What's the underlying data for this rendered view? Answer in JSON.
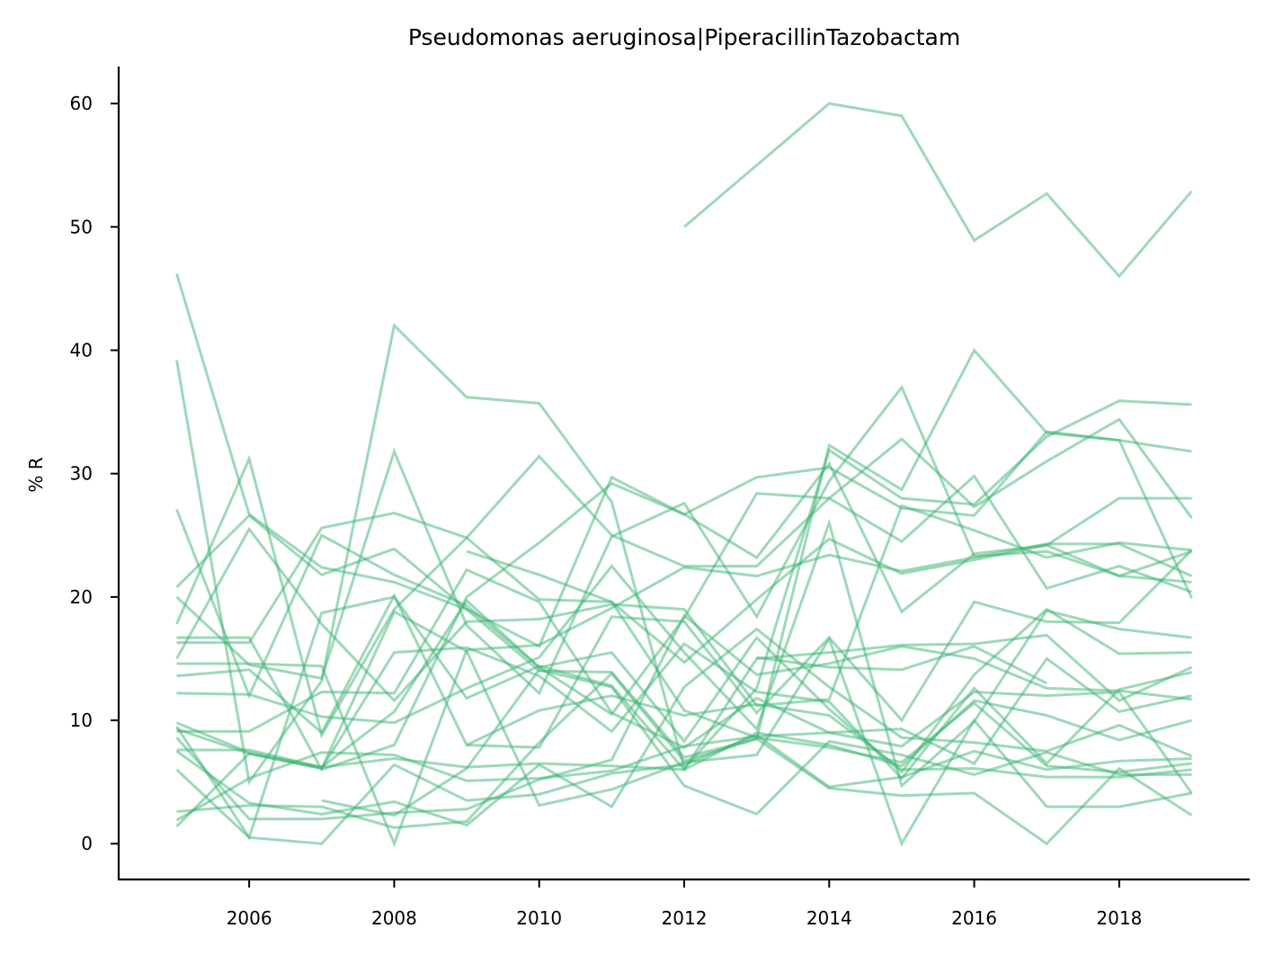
{
  "chart_data": {
    "type": "line",
    "title": "Pseudomonas aeruginosa|PiperacillinTazobactam",
    "xlabel": "",
    "ylabel": "% R",
    "xlim": [
      2004.2,
      2019.8
    ],
    "ylim": [
      -2.9,
      63.0
    ],
    "xticks": [
      2006,
      2008,
      2010,
      2012,
      2014,
      2016,
      2018
    ],
    "yticks": [
      0,
      10,
      20,
      30,
      40,
      50,
      60
    ],
    "grid": false,
    "legend": "none",
    "line_color": "#3cb371",
    "line_opacity": 0.5,
    "x": [
      2005,
      2006,
      2007,
      2008,
      2009,
      2010,
      2011,
      2012,
      2013,
      2014,
      2015,
      2016,
      2017,
      2018,
      2019
    ],
    "series": [
      {
        "values": [
          null,
          null,
          null,
          null,
          null,
          null,
          null,
          50.0,
          55.0,
          60.0,
          59.0,
          48.9,
          52.7,
          46.0,
          52.9
        ]
      },
      {
        "values": [
          46.2,
          26.7,
          22.4,
          21.2,
          19.0,
          14.0,
          13.9,
          7.0,
          8.5,
          32.3,
          28.7,
          40.0,
          33.3,
          32.7,
          31.8
        ]
      },
      {
        "values": [
          39.2,
          5.0,
          13.2,
          42.0,
          36.2,
          35.7,
          27.7,
          6.1,
          12.6,
          31.9,
          28.0,
          27.5,
          33.0,
          35.9,
          35.6
        ]
      },
      {
        "values": [
          27.1,
          12.0,
          25.0,
          21.8,
          19.3,
          14.3,
          10.5,
          18.3,
          28.4,
          28.0,
          32.8,
          27.3,
          31.0,
          34.4,
          26.4
        ]
      },
      {
        "values": [
          20.8,
          26.6,
          21.8,
          23.9,
          19.0,
          16.0,
          29.7,
          26.7,
          23.2,
          30.8,
          18.8,
          23.5,
          24.2,
          28.0,
          28.0
        ]
      },
      {
        "values": [
          20.0,
          14.5,
          13.4,
          31.8,
          17.7,
          12.2,
          24.9,
          27.6,
          18.4,
          29.4,
          37.0,
          23.3,
          23.7,
          21.7,
          21.2
        ]
      },
      {
        "values": [
          17.8,
          31.2,
          8.8,
          19.0,
          24.8,
          31.4,
          25.0,
          22.5,
          22.5,
          28.0,
          24.5,
          29.8,
          20.7,
          22.5,
          20.4
        ]
      },
      {
        "values": [
          16.7,
          16.7,
          6.0,
          8.0,
          20.0,
          24.4,
          29.2,
          26.7,
          29.7,
          30.5,
          27.2,
          26.6,
          33.4,
          32.7,
          19.9
        ]
      },
      {
        "values": [
          16.3,
          16.3,
          25.6,
          26.8,
          24.8,
          19.8,
          19.6,
          14.7,
          19.8,
          24.7,
          21.9,
          23.0,
          24.2,
          21.7,
          23.7
        ]
      },
      {
        "values": [
          15.0,
          25.5,
          17.8,
          11.6,
          18.0,
          18.2,
          19.4,
          19.0,
          11.2,
          11.7,
          27.4,
          25.4,
          23.2,
          24.4,
          23.8
        ]
      },
      {
        "values": [
          14.6,
          14.6,
          14.4,
          0.0,
          15.7,
          16.1,
          19.1,
          22.4,
          21.7,
          23.4,
          22.1,
          23.2,
          24.3,
          24.3,
          21.7
        ]
      },
      {
        "values": [
          13.6,
          14.1,
          9.0,
          20.1,
          8.0,
          7.8,
          18.4,
          18.0,
          10.6,
          16.7,
          10.0,
          19.6,
          18.0,
          17.9,
          23.8
        ]
      },
      {
        "values": [
          12.2,
          12.1,
          10.3,
          9.8,
          12.6,
          15.1,
          22.5,
          15.5,
          9.3,
          26.0,
          4.7,
          9.9,
          18.9,
          17.4,
          16.7
        ]
      },
      {
        "values": [
          9.8,
          7.4,
          6.2,
          10.7,
          19.7,
          14.3,
          15.5,
          8.3,
          16.7,
          10.9,
          5.8,
          13.7,
          19.0,
          15.4,
          15.5
        ]
      },
      {
        "values": [
          9.5,
          0.5,
          18.7,
          20.0,
          11.8,
          14.4,
          12.8,
          6.0,
          15.0,
          15.5,
          16.1,
          16.2,
          16.9,
          11.6,
          14.3
        ]
      },
      {
        "values": [
          9.3,
          7.3,
          6.1,
          15.5,
          15.9,
          13.6,
          9.1,
          16.2,
          12.3,
          11.5,
          5.3,
          12.6,
          6.5,
          12.5,
          13.9
        ]
      },
      {
        "values": [
          9.1,
          9.1,
          12.3,
          12.2,
          22.2,
          19.6,
          10.6,
          7.8,
          11.8,
          9.0,
          9.3,
          6.5,
          15.0,
          10.7,
          12.0
        ]
      },
      {
        "values": [
          8.6,
          2.0,
          2.0,
          2.5,
          2.8,
          5.2,
          6.8,
          18.5,
          13.7,
          14.6,
          16.0,
          15.0,
          12.6,
          12.4,
          11.7
        ]
      },
      {
        "values": [
          7.6,
          7.6,
          6.2,
          6.9,
          6.2,
          6.5,
          6.3,
          6.0,
          9.0,
          8.0,
          6.3,
          11.6,
          10.4,
          8.4,
          10.0
        ]
      },
      {
        "values": [
          7.5,
          3.3,
          2.4,
          3.4,
          1.5,
          6.4,
          3.0,
          12.7,
          17.4,
          12.7,
          8.6,
          8.2,
          7.5,
          9.6,
          7.1
        ]
      },
      {
        "values": [
          6.0,
          0.5,
          0.0,
          6.4,
          3.5,
          4.0,
          5.7,
          6.4,
          8.8,
          4.6,
          5.4,
          7.5,
          6.0,
          6.7,
          6.9
        ]
      },
      {
        "values": [
          2.6,
          3.1,
          3.0,
          1.3,
          1.8,
          8.2,
          13.8,
          6.7,
          8.5,
          4.5,
          3.9,
          4.1,
          0.0,
          6.1,
          2.3
        ]
      },
      {
        "values": [
          1.9,
          5.3,
          7.4,
          7.2,
          5.1,
          5.3,
          5.9,
          7.9,
          8.7,
          9.0,
          7.9,
          12.3,
          12.0,
          12.3,
          4.1
        ]
      },
      {
        "values": [
          1.4,
          7.3,
          6.1,
          18.8,
          15.6,
          3.1,
          4.4,
          6.6,
          7.2,
          16.6,
          0.0,
          10.0,
          3.0,
          3.0,
          4.1
        ]
      },
      {
        "values": [
          null,
          null,
          3.5,
          2.3,
          6.1,
          14.1,
          12.7,
          4.7,
          2.4,
          8.3,
          7.2,
          5.6,
          7.4,
          5.6,
          5.6
        ]
      },
      {
        "values": [
          null,
          null,
          null,
          null,
          23.7,
          21.8,
          19.6,
          10.8,
          8.6,
          7.8,
          6.6,
          11.4,
          6.3,
          5.8,
          6.5
        ]
      },
      {
        "values": [
          null,
          null,
          null,
          null,
          8.0,
          10.8,
          12.0,
          10.4,
          11.3,
          10.4,
          6.0,
          6.1,
          5.4,
          5.4,
          6.0
        ]
      },
      {
        "values": [
          null,
          null,
          null,
          null,
          null,
          null,
          null,
          null,
          15.1,
          14.3,
          14.1,
          16.0,
          13.0,
          null,
          null
        ]
      }
    ]
  }
}
